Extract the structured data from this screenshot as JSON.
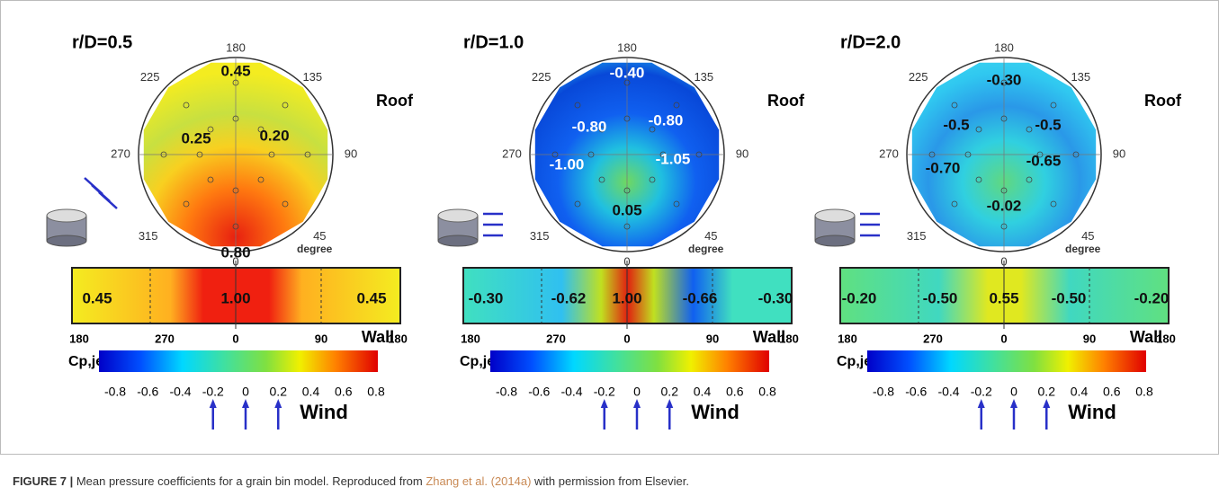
{
  "panels": [
    {
      "title": "r/D=0.5",
      "roof_label": "Roof",
      "degree_label": "degree",
      "angles": [
        "180",
        "135",
        "90",
        "45",
        "0",
        "315",
        "270",
        "225"
      ],
      "roof_values": [
        "0.45",
        "0.25",
        "0.20",
        "0.80"
      ],
      "wall_values": [
        "0.45",
        "1.00",
        "0.45"
      ],
      "wall_ticks": [
        "180",
        "270",
        "0",
        "90",
        "180"
      ],
      "wall_label": "Wall",
      "colorbar_label": "Cp,jet",
      "colorbar_ticks": [
        "-0.8",
        "-0.6",
        "-0.4",
        "-0.2",
        "0",
        "0.2",
        "0.4",
        "0.6",
        "0.8"
      ],
      "wind_label": "Wind"
    },
    {
      "title": "r/D=1.0",
      "roof_label": "Roof",
      "degree_label": "degree",
      "angles": [
        "180",
        "135",
        "90",
        "45",
        "0",
        "315",
        "270",
        "225"
      ],
      "roof_values": [
        "-0.40",
        "-0.80",
        "-0.80",
        "-1.00",
        "-1.05",
        "0.05"
      ],
      "wall_values": [
        "-0.30",
        "-0.62",
        "1.00",
        "-0.66",
        "-0.30"
      ],
      "wall_ticks": [
        "180",
        "270",
        "0",
        "90",
        "180"
      ],
      "wall_label": "Wall",
      "colorbar_label": "Cp,jet",
      "colorbar_ticks": [
        "-0.8",
        "-0.6",
        "-0.4",
        "-0.2",
        "0",
        "0.2",
        "0.4",
        "0.6",
        "0.8"
      ],
      "wind_label": "Wind"
    },
    {
      "title": "r/D=2.0",
      "roof_label": "Roof",
      "degree_label": "degree",
      "angles": [
        "180",
        "135",
        "90",
        "45",
        "0",
        "315",
        "270",
        "225"
      ],
      "roof_values": [
        "-0.30",
        "-0.5",
        "-0.5",
        "-0.70",
        "-0.65",
        "-0.02"
      ],
      "wall_values": [
        "-0.20",
        "-0.50",
        "0.55",
        "-0.50",
        "-0.20"
      ],
      "wall_ticks": [
        "180",
        "270",
        "0",
        "90",
        "180"
      ],
      "wall_label": "Wall",
      "colorbar_label": "Cp,jet",
      "colorbar_ticks": [
        "-0.8",
        "-0.6",
        "-0.4",
        "-0.2",
        "0",
        "0.2",
        "0.4",
        "0.6",
        "0.8"
      ],
      "wind_label": "Wind"
    }
  ],
  "caption": {
    "label": "FIGURE 7 |",
    "text": " Mean pressure coefficients for a grain bin model. Reproduced from ",
    "link": "Zhang et al. (2014a)",
    "text_end": " with permission from Elsevier."
  }
}
